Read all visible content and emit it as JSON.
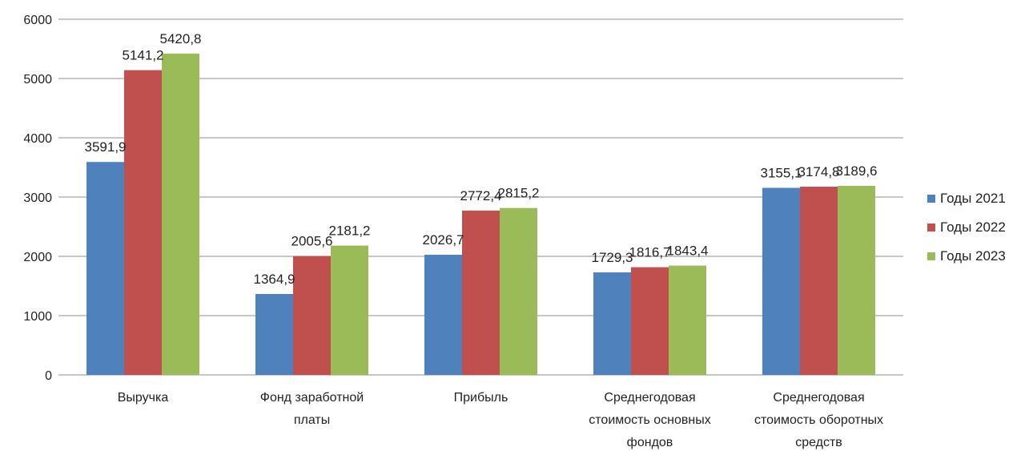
{
  "chart_data": {
    "type": "bar",
    "categories": [
      [
        "Выручка"
      ],
      [
        "Фонд заработной",
        "платы"
      ],
      [
        "Прибыль"
      ],
      [
        "Среднегодовая",
        "стоимость основных",
        "фондов"
      ],
      [
        "Среднегодовая",
        "стоимость оборотных",
        "средств"
      ]
    ],
    "series": [
      {
        "name": "Годы 2021",
        "color": "#4f81bd",
        "values": [
          3591.9,
          1364.9,
          2026.7,
          1729.3,
          3155.1
        ],
        "labels": [
          "3591,9",
          "1364,9",
          "2026,7",
          "1729,3",
          "3155,1"
        ]
      },
      {
        "name": "Годы 2022",
        "color": "#c0504d",
        "values": [
          5141.2,
          2005.6,
          2772.4,
          1816.7,
          3174.8
        ],
        "labels": [
          "5141,2",
          "2005,6",
          "2772,4",
          "1816,7",
          "3174,8"
        ]
      },
      {
        "name": "Годы 2023",
        "color": "#9bbb59",
        "values": [
          5420.8,
          2181.2,
          2815.2,
          1843.4,
          3189.6
        ],
        "labels": [
          "5420,8",
          "2181,2",
          "2815,2",
          "1843,4",
          "3189,6"
        ]
      }
    ],
    "ylim": [
      0,
      6000
    ],
    "yticks": [
      0,
      1000,
      2000,
      3000,
      4000,
      5000,
      6000
    ],
    "title": "",
    "xlabel": "",
    "ylabel": "",
    "grid": true,
    "legend_position": "right"
  }
}
